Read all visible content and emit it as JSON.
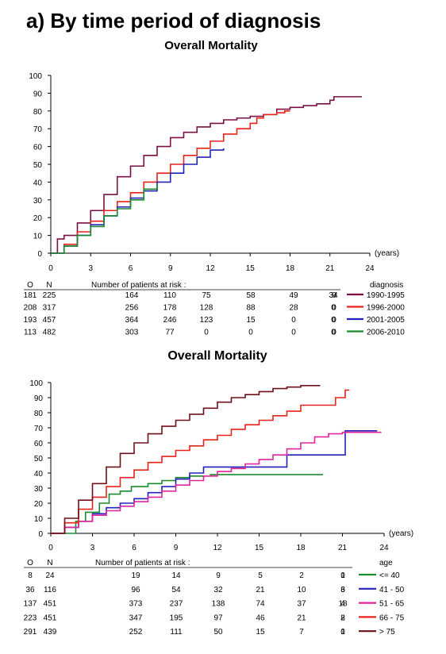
{
  "heading": "a)  By time period of diagnosis",
  "chart_data": [
    {
      "type": "line",
      "step": true,
      "title": "Overall Mortality",
      "x_unit_label": "(years)",
      "xlim": [
        0,
        24
      ],
      "ylim": [
        0,
        100
      ],
      "x_ticks": [
        0,
        3,
        6,
        9,
        12,
        15,
        18,
        21,
        24
      ],
      "y_ticks": [
        0,
        10,
        20,
        30,
        40,
        50,
        60,
        70,
        80,
        90,
        100
      ],
      "risk_table": {
        "col_o": "O",
        "col_n": "N",
        "title": "Number of patients at risk :",
        "legend_title": "diagnosis"
      },
      "series": [
        {
          "name": "1990-1995",
          "color": "#7a1045",
          "o": 181,
          "n": 225,
          "at_risk": [
            164,
            110,
            75,
            58,
            49,
            34,
            9
          ],
          "points": [
            [
              0,
              0
            ],
            [
              0.5,
              8
            ],
            [
              1,
              10
            ],
            [
              2,
              17
            ],
            [
              3,
              24
            ],
            [
              4,
              33
            ],
            [
              5,
              43
            ],
            [
              6,
              49
            ],
            [
              7,
              55
            ],
            [
              8,
              60
            ],
            [
              9,
              65
            ],
            [
              10,
              68
            ],
            [
              11,
              71
            ],
            [
              12,
              73
            ],
            [
              13,
              75
            ],
            [
              14,
              76
            ],
            [
              15,
              77
            ],
            [
              16,
              78
            ],
            [
              17,
              81
            ],
            [
              18,
              82
            ],
            [
              19,
              83
            ],
            [
              20,
              84
            ],
            [
              21,
              86
            ],
            [
              21.3,
              88
            ],
            [
              23.4,
              88
            ]
          ]
        },
        {
          "name": "1996-2000",
          "color": "#e8231a",
          "o": 208,
          "n": 317,
          "at_risk": [
            256,
            178,
            128,
            88,
            28,
            0,
            0
          ],
          "points": [
            [
              0,
              0
            ],
            [
              1,
              5
            ],
            [
              2,
              12
            ],
            [
              3,
              18
            ],
            [
              4,
              24
            ],
            [
              5,
              29
            ],
            [
              6,
              34
            ],
            [
              7,
              40
            ],
            [
              8,
              45
            ],
            [
              9,
              50
            ],
            [
              10,
              55
            ],
            [
              11,
              59
            ],
            [
              12,
              63
            ],
            [
              13,
              67
            ],
            [
              14,
              70
            ],
            [
              15,
              73
            ],
            [
              15.5,
              76
            ],
            [
              16,
              78
            ],
            [
              17,
              79
            ],
            [
              17.6,
              80
            ],
            [
              18,
              80
            ]
          ]
        },
        {
          "name": "2001-2005",
          "color": "#2222b8",
          "o": 193,
          "n": 457,
          "at_risk": [
            364,
            246,
            123,
            15,
            0,
            0,
            0
          ],
          "points": [
            [
              0,
              0
            ],
            [
              1,
              4
            ],
            [
              2,
              10
            ],
            [
              3,
              16
            ],
            [
              4,
              21
            ],
            [
              5,
              26
            ],
            [
              6,
              31
            ],
            [
              7,
              35
            ],
            [
              8,
              40
            ],
            [
              9,
              45
            ],
            [
              10,
              50
            ],
            [
              11,
              54
            ],
            [
              12,
              58
            ],
            [
              13,
              59
            ]
          ]
        },
        {
          "name": "2006-2010",
          "color": "#1a8c2e",
          "o": 113,
          "n": 482,
          "at_risk": [
            303,
            77,
            0,
            0,
            0,
            0,
            0
          ],
          "points": [
            [
              0,
              0
            ],
            [
              1,
              4
            ],
            [
              2,
              10
            ],
            [
              3,
              15
            ],
            [
              4,
              21
            ],
            [
              5,
              25
            ],
            [
              6,
              30
            ],
            [
              7,
              36
            ],
            [
              8,
              39
            ]
          ]
        }
      ]
    },
    {
      "type": "line",
      "step": true,
      "title": "Overall Mortality",
      "x_unit_label": "(years)",
      "xlim": [
        0,
        24
      ],
      "ylim": [
        0,
        100
      ],
      "x_ticks": [
        0,
        3,
        6,
        9,
        12,
        15,
        18,
        21,
        24
      ],
      "y_ticks": [
        0,
        10,
        20,
        30,
        40,
        50,
        60,
        70,
        80,
        90,
        100
      ],
      "risk_table": {
        "col_o": "O",
        "col_n": "N",
        "title": "Number of patients at risk :",
        "legend_title": "age"
      },
      "series": [
        {
          "name": "<= 40",
          "color": "#1a8c2e",
          "o": 8,
          "n": 24,
          "at_risk": [
            19,
            14,
            9,
            5,
            2,
            1,
            0
          ],
          "points": [
            [
              0,
              0
            ],
            [
              1.8,
              8
            ],
            [
              2.5,
              14
            ],
            [
              3.5,
              20
            ],
            [
              4.2,
              26
            ],
            [
              5,
              28
            ],
            [
              5.8,
              31
            ],
            [
              7,
              33
            ],
            [
              8,
              35
            ],
            [
              9,
              37
            ],
            [
              10,
              38
            ],
            [
              11.5,
              39
            ],
            [
              15,
              39
            ],
            [
              19.6,
              39
            ]
          ]
        },
        {
          "name": "41 - 50",
          "color": "#2222b8",
          "o": 36,
          "n": 116,
          "at_risk": [
            96,
            54,
            32,
            21,
            10,
            6,
            3
          ],
          "points": [
            [
              0,
              0
            ],
            [
              1,
              4
            ],
            [
              2,
              8
            ],
            [
              3,
              13
            ],
            [
              4,
              17
            ],
            [
              5,
              20
            ],
            [
              6,
              23
            ],
            [
              7,
              27
            ],
            [
              8,
              31
            ],
            [
              9,
              36
            ],
            [
              10,
              40
            ],
            [
              11,
              44
            ],
            [
              12,
              44
            ],
            [
              15,
              44
            ],
            [
              16,
              44
            ],
            [
              17,
              52
            ],
            [
              20,
              52
            ],
            [
              21,
              52
            ],
            [
              21.2,
              68
            ],
            [
              23.5,
              68
            ]
          ]
        },
        {
          "name": "51 - 65",
          "color": "#e0259a",
          "o": 137,
          "n": 451,
          "at_risk": [
            373,
            237,
            138,
            74,
            37,
            18,
            4
          ],
          "points": [
            [
              0,
              0
            ],
            [
              1,
              4
            ],
            [
              2,
              8
            ],
            [
              3,
              12
            ],
            [
              4,
              15
            ],
            [
              5,
              18
            ],
            [
              6,
              21
            ],
            [
              7,
              24
            ],
            [
              8,
              28
            ],
            [
              9,
              32
            ],
            [
              10,
              35
            ],
            [
              11,
              38
            ],
            [
              12,
              41
            ],
            [
              13,
              43
            ],
            [
              14,
              46
            ],
            [
              15,
              49
            ],
            [
              16,
              52
            ],
            [
              17,
              56
            ],
            [
              18,
              60
            ],
            [
              19,
              64
            ],
            [
              20,
              66
            ],
            [
              21,
              67
            ],
            [
              23.8,
              67
            ]
          ]
        },
        {
          "name": "66 - 75",
          "color": "#e8231a",
          "o": 223,
          "n": 451,
          "at_risk": [
            347,
            195,
            97,
            46,
            21,
            8,
            2
          ],
          "points": [
            [
              0,
              0
            ],
            [
              1,
              7
            ],
            [
              2,
              16
            ],
            [
              3,
              24
            ],
            [
              4,
              31
            ],
            [
              5,
              37
            ],
            [
              6,
              42
            ],
            [
              7,
              47
            ],
            [
              8,
              51
            ],
            [
              9,
              55
            ],
            [
              10,
              58
            ],
            [
              11,
              62
            ],
            [
              12,
              65
            ],
            [
              13,
              69
            ],
            [
              14,
              72
            ],
            [
              15,
              75
            ],
            [
              16,
              78
            ],
            [
              17,
              81
            ],
            [
              18,
              85
            ],
            [
              20,
              85
            ],
            [
              20.5,
              90
            ],
            [
              21.2,
              95
            ],
            [
              21.5,
              95
            ]
          ]
        },
        {
          "name": "> 75",
          "color": "#6e1018",
          "o": 291,
          "n": 439,
          "at_risk": [
            252,
            111,
            50,
            15,
            7,
            1,
            0
          ],
          "points": [
            [
              0,
              0
            ],
            [
              1,
              10
            ],
            [
              2,
              22
            ],
            [
              3,
              33
            ],
            [
              4,
              44
            ],
            [
              5,
              53
            ],
            [
              6,
              60
            ],
            [
              7,
              66
            ],
            [
              8,
              71
            ],
            [
              9,
              75
            ],
            [
              10,
              79
            ],
            [
              11,
              83
            ],
            [
              12,
              87
            ],
            [
              13,
              90
            ],
            [
              14,
              92
            ],
            [
              15,
              94
            ],
            [
              16,
              96
            ],
            [
              17,
              97
            ],
            [
              18,
              98
            ],
            [
              19,
              98
            ],
            [
              19.4,
              98
            ]
          ]
        }
      ]
    }
  ]
}
